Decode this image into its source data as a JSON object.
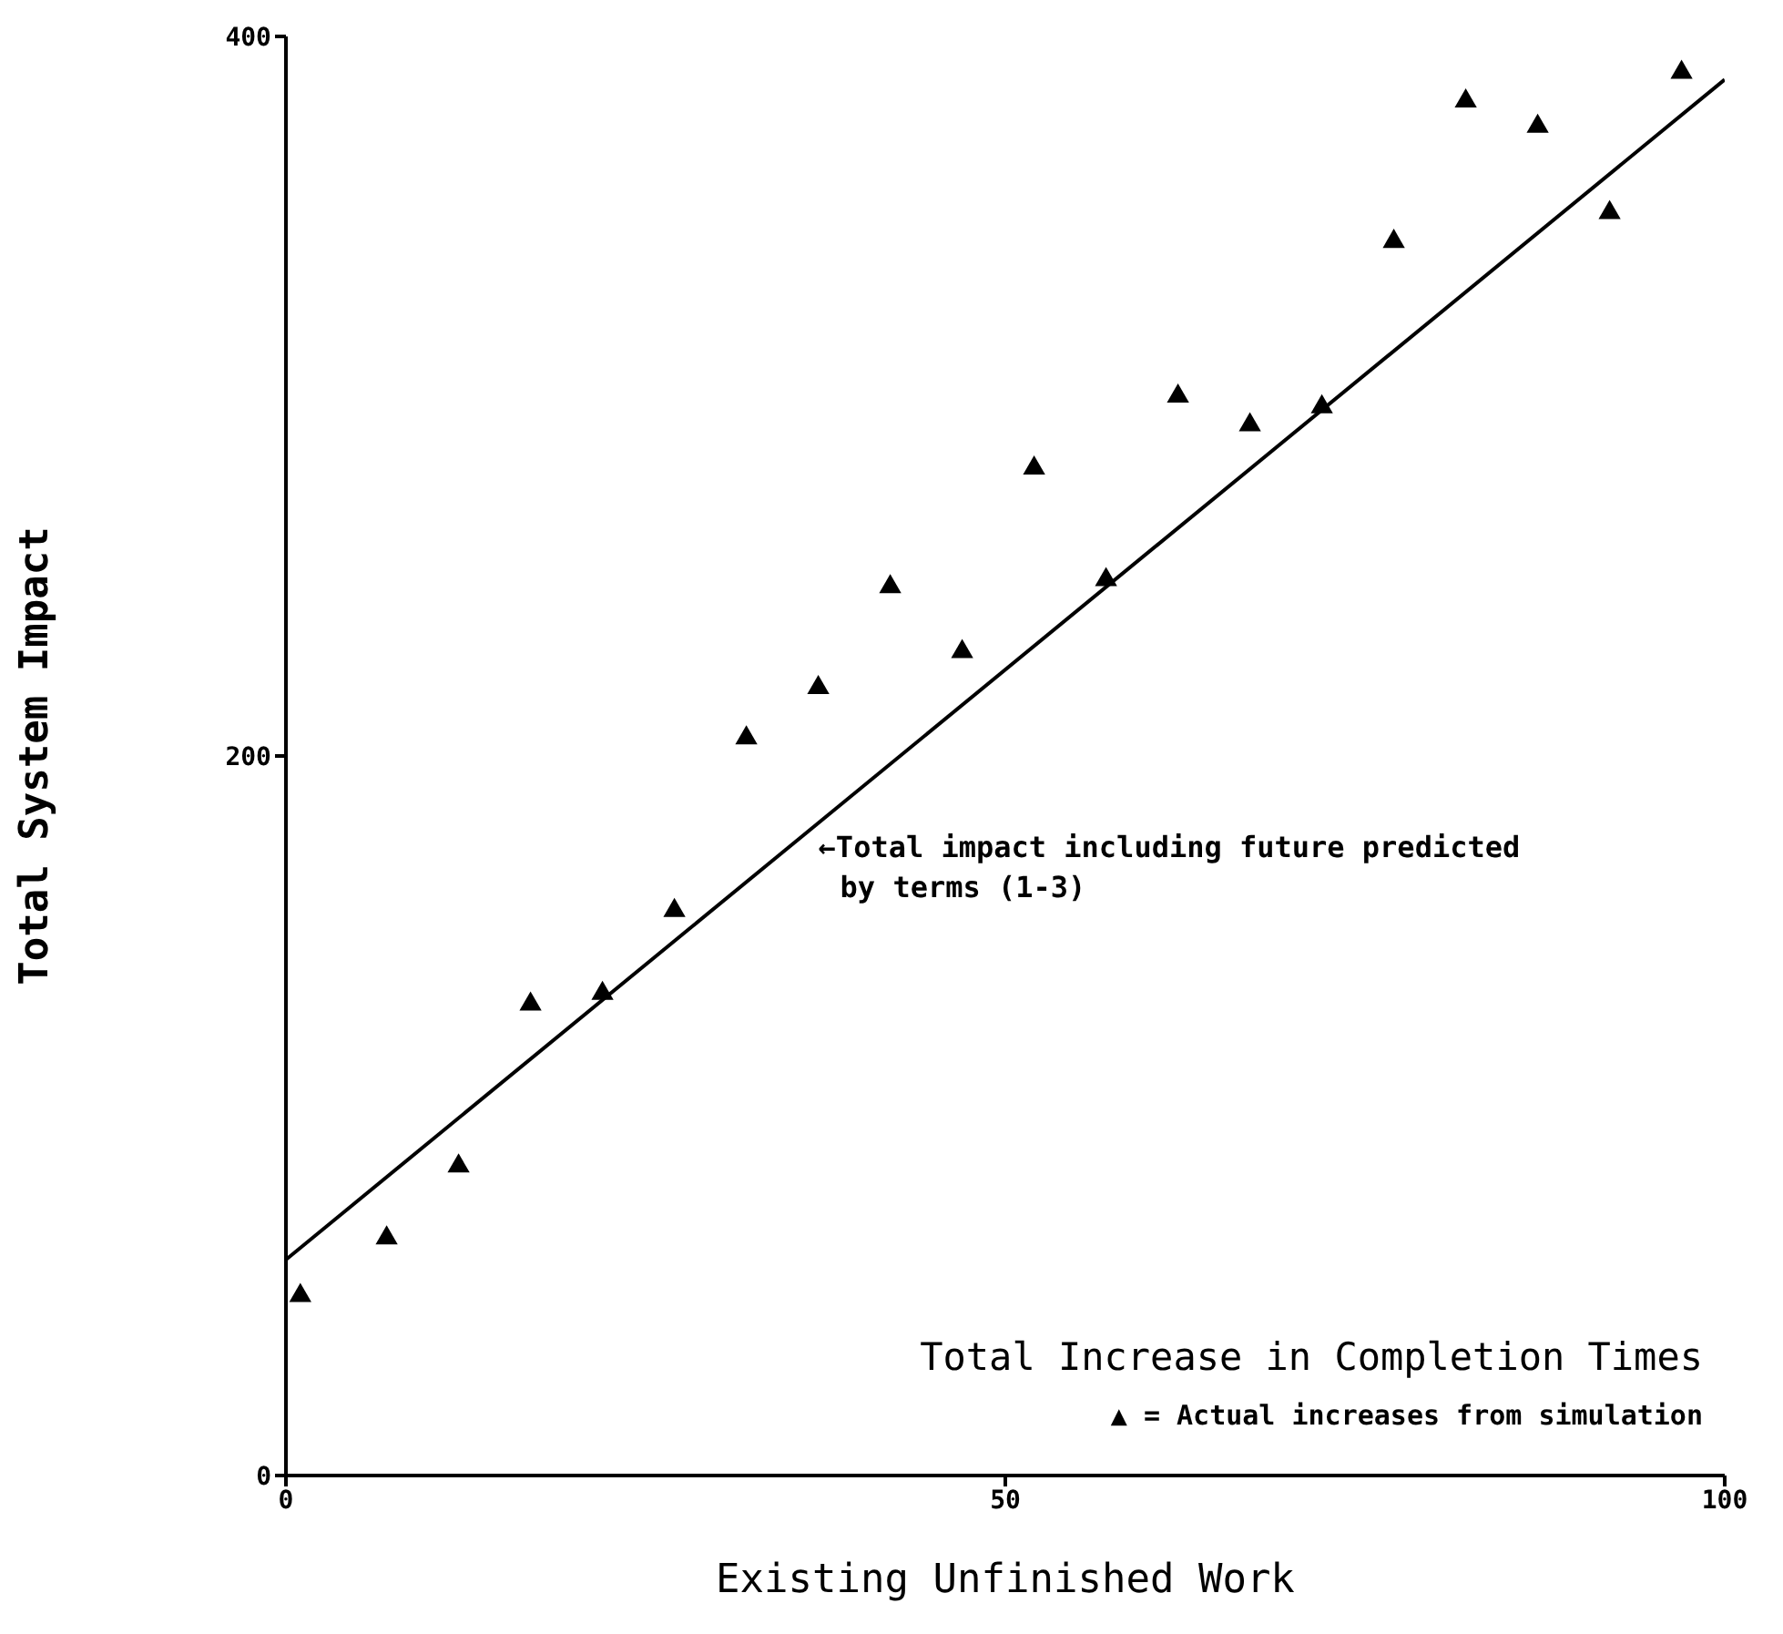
{
  "chart_data": {
    "type": "scatter",
    "xlabel": "Existing Unfinished Work",
    "ylabel": "Total System Impact",
    "xlim": [
      0,
      100
    ],
    "xticks": [
      0,
      50,
      100
    ],
    "ylim": [
      0,
      400
    ],
    "yticks": [
      0,
      200,
      400
    ],
    "grid": false,
    "marker": "triangle",
    "series": [
      {
        "color": "#000000",
        "x": [
          1,
          7,
          12,
          17,
          22,
          27,
          32,
          37,
          42,
          47,
          52,
          57,
          62,
          67,
          72,
          77,
          82,
          87,
          92,
          97
        ],
        "values": [
          50,
          66,
          86,
          131,
          134,
          157,
          205,
          219,
          247,
          229,
          280,
          249,
          300,
          292,
          297,
          343,
          382,
          375,
          351,
          390
        ]
      },
      {
        "type": "line",
        "color": "#000000",
        "marker": "none",
        "x": [
          0,
          100
        ],
        "values": [
          60,
          388
        ]
      }
    ],
    "annotations": [
      "←Total impact including future predicted by terms (1-3)",
      "Total Increase in Completion Times",
      "▲ = Actual increases from simulation"
    ]
  }
}
